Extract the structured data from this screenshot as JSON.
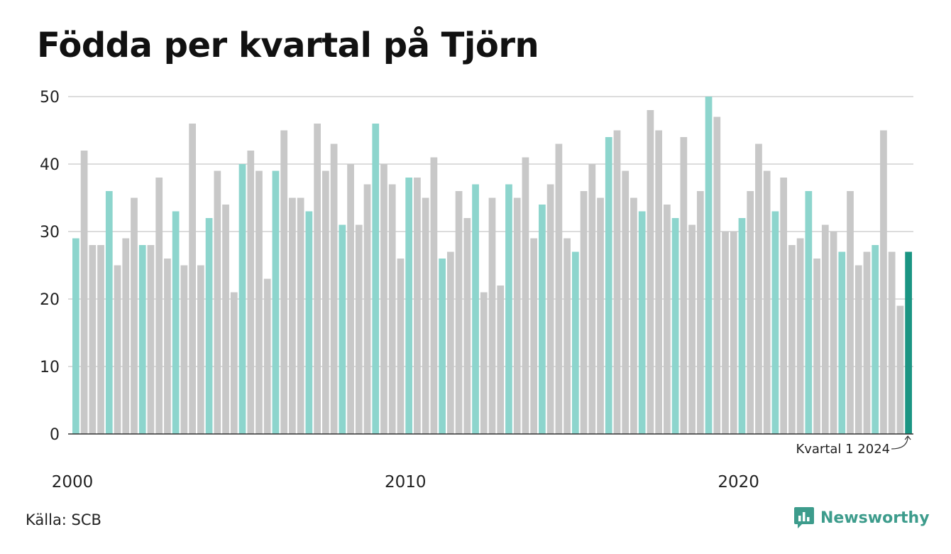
{
  "title": "Födda per kvartal på Tjörn",
  "source": "Källa: SCB",
  "brand": {
    "name": "Newsworthy",
    "icon": "newsworthy-logo-icon"
  },
  "colors": {
    "q1": "#8dd5cd",
    "other": "#c8c8c8",
    "latest": "#1b9583",
    "grid": "#dcdcdc",
    "axis": "#333333"
  },
  "chart_data": {
    "type": "bar",
    "start_year": 2000,
    "quarters_per_year": 4,
    "values": [
      29,
      42,
      28,
      28,
      36,
      25,
      29,
      35,
      28,
      28,
      38,
      26,
      33,
      25,
      46,
      25,
      32,
      39,
      34,
      21,
      40,
      42,
      39,
      23,
      39,
      45,
      35,
      35,
      33,
      46,
      39,
      43,
      31,
      40,
      31,
      37,
      46,
      40,
      37,
      26,
      38,
      38,
      35,
      41,
      26,
      27,
      36,
      32,
      37,
      21,
      35,
      22,
      37,
      35,
      41,
      29,
      34,
      37,
      43,
      29,
      27,
      36,
      40,
      35,
      44,
      45,
      39,
      35,
      33,
      48,
      45,
      34,
      32,
      44,
      31,
      36,
      50,
      47,
      30,
      30,
      32,
      36,
      43,
      39,
      33,
      38,
      28,
      29,
      36,
      26,
      31,
      30,
      27,
      36,
      25,
      27,
      28,
      45,
      27,
      19,
      27
    ],
    "ylim": [
      0,
      50
    ],
    "yticks": [
      "0",
      "10",
      "20",
      "30",
      "40",
      "50"
    ],
    "xticks": [
      "2000",
      "2010",
      "2020"
    ],
    "annotation": "Kvartal 1 2024",
    "grid": true
  }
}
